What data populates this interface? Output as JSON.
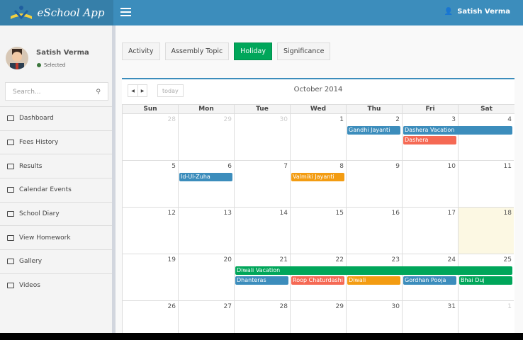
{
  "app": {
    "title": "eSchool App"
  },
  "header": {
    "user": "Satish Verma"
  },
  "profile": {
    "name": "Satish Verma",
    "status": "Selected"
  },
  "search": {
    "placeholder": "Search..."
  },
  "sidebar": {
    "items": [
      {
        "label": "Dashboard",
        "icon": "dashboard-icon"
      },
      {
        "label": "Fees History",
        "icon": "list-icon"
      },
      {
        "label": "Results",
        "icon": "bar-chart-icon"
      },
      {
        "label": "Calendar Events",
        "icon": "calendar-icon"
      },
      {
        "label": "School Diary",
        "icon": "book-icon"
      },
      {
        "label": "View Homework",
        "icon": "edit-icon"
      },
      {
        "label": "Gallery",
        "icon": "camera-icon"
      },
      {
        "label": "Videos",
        "icon": "film-icon"
      }
    ]
  },
  "tabs": [
    {
      "label": "Activity"
    },
    {
      "label": "Assembly Topic"
    },
    {
      "label": "Holiday",
      "active": true
    },
    {
      "label": "Significance"
    }
  ],
  "calendar": {
    "title": "October 2014",
    "today_label": "today",
    "days": [
      "Sun",
      "Mon",
      "Tue",
      "Wed",
      "Thu",
      "Fri",
      "Sat"
    ],
    "weeks": [
      [
        "28",
        "29",
        "30",
        "1",
        "2",
        "3",
        "4"
      ],
      [
        "5",
        "6",
        "7",
        "8",
        "9",
        "10",
        "11"
      ],
      [
        "12",
        "13",
        "14",
        "15",
        "16",
        "17",
        "18"
      ],
      [
        "19",
        "20",
        "21",
        "22",
        "23",
        "24",
        "25"
      ],
      [
        "26",
        "27",
        "28",
        "29",
        "30",
        "31",
        "1"
      ]
    ],
    "highlight_date": "18",
    "events": [
      {
        "title": "Gandhi Jayanti",
        "week": 0,
        "day": 4,
        "span": 1,
        "slot": 0,
        "color": "#3c8dbc"
      },
      {
        "title": "Dashera Vacation",
        "week": 0,
        "day": 5,
        "span": 2,
        "slot": 0,
        "color": "#3c8dbc"
      },
      {
        "title": "Dashera",
        "week": 0,
        "day": 5,
        "span": 1,
        "slot": 1,
        "color": "#f56954"
      },
      {
        "title": "Id-Ul-Zuha",
        "week": 1,
        "day": 1,
        "span": 1,
        "slot": 0,
        "color": "#3c8dbc"
      },
      {
        "title": "Valmiki Jayanti",
        "week": 1,
        "day": 3,
        "span": 1,
        "slot": 0,
        "color": "#f39c12"
      },
      {
        "title": "Diwali Vacation",
        "week": 3,
        "day": 2,
        "span": 5,
        "slot": 0,
        "color": "#00a65a"
      },
      {
        "title": "Dhanteras",
        "week": 3,
        "day": 2,
        "span": 1,
        "slot": 1,
        "color": "#3c8dbc"
      },
      {
        "title": "Roop Chaturdashi",
        "week": 3,
        "day": 3,
        "span": 1,
        "slot": 1,
        "color": "#f56954"
      },
      {
        "title": "Diwali",
        "week": 3,
        "day": 4,
        "span": 1,
        "slot": 1,
        "color": "#f39c12"
      },
      {
        "title": "Gordhan Pooja",
        "week": 3,
        "day": 5,
        "span": 1,
        "slot": 1,
        "color": "#3c8dbc"
      },
      {
        "title": "Bhai Duj",
        "week": 3,
        "day": 6,
        "span": 1,
        "slot": 1,
        "color": "#00a65a"
      }
    ]
  }
}
